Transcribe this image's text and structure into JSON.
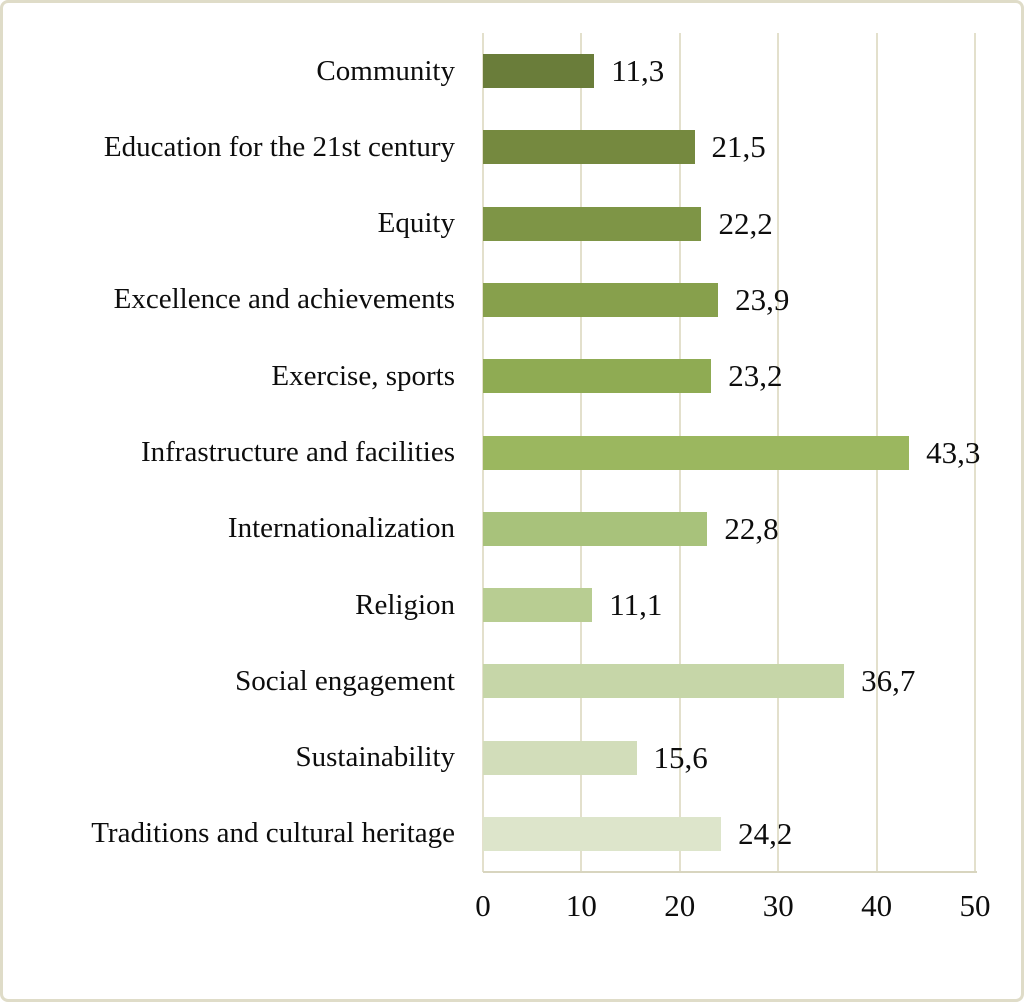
{
  "frame": {
    "border_color": "#dfdcc8",
    "background_color": "#ffffff"
  },
  "chart_data": {
    "type": "bar",
    "orientation": "horizontal",
    "title": "",
    "xlabel": "",
    "ylabel": "",
    "categories": [
      "Community",
      "Education for the 21st century",
      "Equity",
      "Excellence and achievements",
      "Exercise, sports",
      "Infrastructure and facilities",
      "Internationalization",
      "Religion",
      "Social engagement",
      "Sustainability",
      "Traditions and cultural heritage"
    ],
    "values": [
      11.3,
      21.5,
      22.2,
      23.9,
      23.2,
      43.3,
      22.8,
      11.1,
      36.7,
      15.6,
      24.2
    ],
    "value_labels": [
      "11,3",
      "21,5",
      "22,2",
      "23,9",
      "23,2",
      "43,3",
      "22,8",
      "11,1",
      "36,7",
      "15,6",
      "24,2"
    ],
    "bar_colors": [
      "#6a7d3a",
      "#75893f",
      "#7e9546",
      "#87a04c",
      "#8fab53",
      "#9bb75f",
      "#a8c27b",
      "#b8cd92",
      "#c6d6a8",
      "#d2ddba",
      "#dde5cb"
    ],
    "xlim": [
      0,
      50
    ],
    "x_ticks": [
      0,
      10,
      20,
      30,
      40,
      50
    ],
    "x_tick_labels": [
      "0",
      "10",
      "20",
      "30",
      "40",
      "50"
    ],
    "grid": "vertical",
    "gridline_color": "#e3e0cc",
    "axis_line_color": "#d8d5bf",
    "legend": "none"
  }
}
